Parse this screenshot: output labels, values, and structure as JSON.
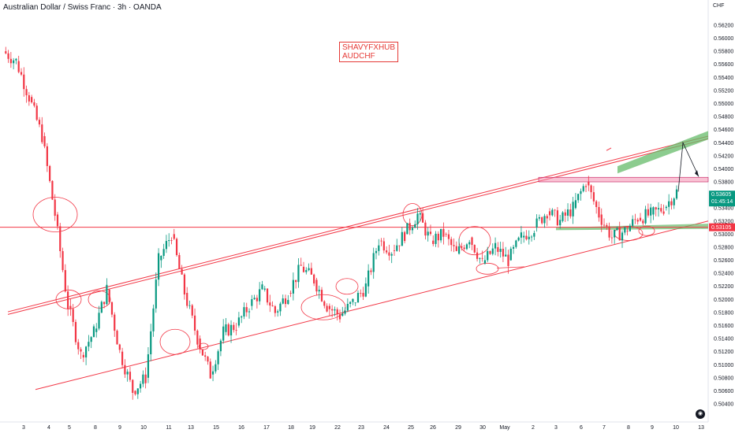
{
  "header": {
    "title": "Australian Dollar / Swiss Franc · 3h · OANDA",
    "currency": "CHF"
  },
  "watermark": {
    "line1": "SHAVYFXHUB",
    "line2": "AUDCHF"
  },
  "price_tags": {
    "current": {
      "price": "0.53605",
      "countdown": "01:45:14",
      "color": "#089981"
    },
    "level": {
      "price": "0.53105",
      "color": "#f23645"
    }
  },
  "colors": {
    "up": "#089981",
    "down": "#f23645",
    "drawing": "#f23645",
    "zone_pink": "#f48fb1",
    "zone_green": "#66bb6a"
  },
  "chart_data": {
    "type": "candlestick",
    "title": "Australian Dollar / Swiss Franc · 3h · OANDA",
    "symbol": "AUDCHF",
    "timeframe": "3h",
    "ylim": [
      0.5034,
      0.5632
    ],
    "y_ticks": [
      "0.56200",
      "0.56000",
      "0.55800",
      "0.55600",
      "0.55400",
      "0.55200",
      "0.55000",
      "0.54800",
      "0.54600",
      "0.54400",
      "0.54200",
      "0.54000",
      "0.53800",
      "0.53400",
      "0.53200",
      "0.53000",
      "0.52800",
      "0.52600",
      "0.52400",
      "0.52200",
      "0.52000",
      "0.51800",
      "0.51600",
      "0.51400",
      "0.51200",
      "0.51000",
      "0.50800",
      "0.50600",
      "0.50400"
    ],
    "x_ticks": [
      "3",
      "4",
      "5",
      "8",
      "9",
      "10",
      "11",
      "13",
      "15",
      "16",
      "17",
      "18",
      "19",
      "22",
      "23",
      "24",
      "25",
      "26",
      "29",
      "30",
      "May",
      "2",
      "3",
      "6",
      "7",
      "8",
      "9",
      "10",
      "13"
    ],
    "price_path": [
      [
        0.558,
        "3"
      ],
      [
        0.5565,
        "3"
      ],
      [
        0.551,
        "4"
      ],
      [
        0.545,
        "4"
      ],
      [
        0.533,
        "5"
      ],
      [
        0.519,
        "5"
      ],
      [
        0.5115,
        "5"
      ],
      [
        0.515,
        "8"
      ],
      [
        0.5215,
        "8"
      ],
      [
        0.512,
        "9"
      ],
      [
        0.506,
        "9"
      ],
      [
        0.508,
        "9"
      ],
      [
        0.526,
        "10"
      ],
      [
        0.53,
        "10"
      ],
      [
        0.521,
        "10"
      ],
      [
        0.514,
        "11"
      ],
      [
        0.5085,
        "11"
      ],
      [
        0.515,
        "11"
      ],
      [
        0.516,
        "13"
      ],
      [
        0.519,
        "15"
      ],
      [
        0.5215,
        "15"
      ],
      [
        0.518,
        "16"
      ],
      [
        0.521,
        "17"
      ],
      [
        0.525,
        "18"
      ],
      [
        0.523,
        "18"
      ],
      [
        0.519,
        "19"
      ],
      [
        0.5175,
        "22"
      ],
      [
        0.5195,
        "22"
      ],
      [
        0.522,
        "23"
      ],
      [
        0.529,
        "23"
      ],
      [
        0.5275,
        "24"
      ],
      [
        0.53,
        "25"
      ],
      [
        0.533,
        "25"
      ],
      [
        0.529,
        "26"
      ],
      [
        0.53,
        "26"
      ],
      [
        0.527,
        "29"
      ],
      [
        0.5295,
        "29"
      ],
      [
        0.5255,
        "30"
      ],
      [
        0.528,
        "30"
      ],
      [
        0.526,
        "May"
      ],
      [
        0.5295,
        "May"
      ],
      [
        0.531,
        "2"
      ],
      [
        0.5335,
        "3"
      ],
      [
        0.532,
        "6"
      ],
      [
        0.534,
        "6"
      ],
      [
        0.538,
        "7"
      ],
      [
        0.533,
        "7"
      ],
      [
        0.5295,
        "8"
      ],
      [
        0.5305,
        "9"
      ],
      [
        0.5325,
        "9"
      ],
      [
        0.533,
        "10"
      ],
      [
        0.534,
        "10"
      ],
      [
        0.5365,
        "11"
      ]
    ],
    "horizontal_level": 0.53105,
    "last_price": 0.53605,
    "annotations": {
      "resistance_zone": [
        0.538,
        0.5387
      ],
      "projected_target_zone": [
        0.544,
        0.545
      ],
      "channel": "ascending (double upper line, single lower line)"
    },
    "grid": false,
    "legend": "none"
  }
}
